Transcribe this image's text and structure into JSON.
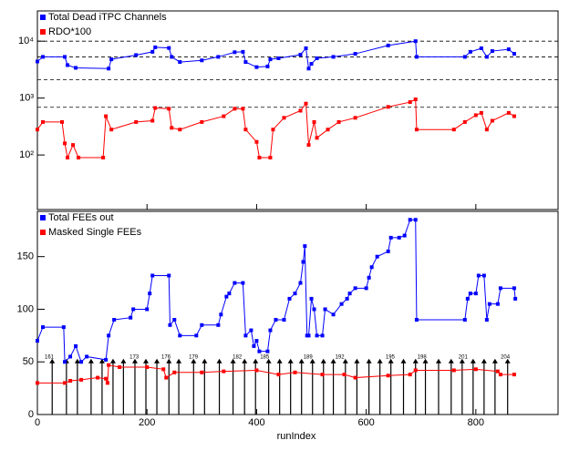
{
  "chart_data": [
    {
      "type": "line",
      "log_y": true,
      "xlim": [
        0,
        950
      ],
      "ylim": [
        11,
        34000
      ],
      "yticks": [
        {
          "value": 100,
          "label": "10²"
        },
        {
          "value": 1000,
          "label": "10³"
        },
        {
          "value": 10000,
          "label": "10⁴"
        }
      ],
      "ref_lines": [
        10000,
        5300,
        2100,
        690
      ],
      "series": [
        {
          "name": "Total Dead iTPC Channels",
          "color": "#0000ff",
          "x": [
            0,
            10,
            50,
            55,
            70,
            130,
            135,
            180,
            210,
            215,
            240,
            245,
            260,
            300,
            330,
            360,
            375,
            380,
            400,
            420,
            425,
            440,
            480,
            490,
            495,
            500,
            510,
            540,
            580,
            640,
            690,
            692,
            780,
            790,
            810,
            820,
            830,
            860,
            870
          ],
          "values": [
            4400,
            5300,
            5300,
            3800,
            3400,
            3300,
            4800,
            5700,
            6500,
            7800,
            7600,
            5300,
            4300,
            4600,
            5300,
            6400,
            6500,
            4300,
            3500,
            3600,
            4800,
            5000,
            5800,
            7500,
            3300,
            4000,
            5000,
            5300,
            6000,
            8400,
            10000,
            5300,
            5300,
            6500,
            7500,
            5300,
            6700,
            7200,
            6000
          ]
        },
        {
          "name": "RDO*100",
          "color": "#ff0000",
          "x": [
            0,
            10,
            45,
            50,
            55,
            65,
            75,
            120,
            125,
            135,
            180,
            210,
            215,
            240,
            245,
            260,
            300,
            340,
            360,
            375,
            380,
            400,
            405,
            425,
            430,
            450,
            480,
            490,
            495,
            505,
            510,
            530,
            550,
            580,
            640,
            680,
            690,
            692,
            760,
            780,
            800,
            810,
            820,
            830,
            860,
            870
          ],
          "values": [
            280,
            380,
            380,
            160,
            90,
            150,
            90,
            90,
            480,
            280,
            380,
            400,
            670,
            650,
            300,
            280,
            380,
            480,
            650,
            650,
            280,
            170,
            90,
            90,
            280,
            450,
            600,
            800,
            150,
            380,
            200,
            280,
            380,
            450,
            700,
            850,
            950,
            280,
            280,
            380,
            500,
            550,
            280,
            400,
            550,
            480
          ]
        }
      ]
    },
    {
      "type": "line",
      "xlabel": "runIndex",
      "xlim": [
        0,
        950
      ],
      "ylim": [
        0,
        193
      ],
      "xticks": [
        0,
        200,
        400,
        600,
        800
      ],
      "yticks": [
        0,
        50,
        100,
        150
      ],
      "marker_y": 53,
      "markers": [
        27,
        53,
        73,
        98,
        118,
        138,
        157,
        178,
        198,
        218,
        240,
        258,
        285,
        305,
        332,
        357,
        378,
        398,
        422,
        442,
        462,
        482,
        502,
        522,
        540,
        562,
        583,
        605,
        625,
        645,
        668,
        690,
        708,
        732,
        755,
        775,
        795,
        815,
        835,
        858
      ],
      "marker_labels": [
        {
          "x": 10,
          "label": "161"
        },
        {
          "x": 165,
          "label": "173"
        },
        {
          "x": 223,
          "label": "176"
        },
        {
          "x": 273,
          "label": "179"
        },
        {
          "x": 353,
          "label": "182"
        },
        {
          "x": 403,
          "label": "185"
        },
        {
          "x": 482,
          "label": "189"
        },
        {
          "x": 540,
          "label": "192"
        },
        {
          "x": 632,
          "label": "195"
        },
        {
          "x": 690,
          "label": "198"
        },
        {
          "x": 765,
          "label": "201"
        },
        {
          "x": 842,
          "label": "204"
        }
      ],
      "series": [
        {
          "name": "Total FEEs out",
          "color": "#0000ff",
          "x": [
            0,
            10,
            48,
            50,
            60,
            70,
            80,
            90,
            125,
            130,
            140,
            170,
            175,
            200,
            205,
            210,
            240,
            242,
            250,
            260,
            290,
            300,
            330,
            335,
            345,
            350,
            360,
            375,
            380,
            390,
            395,
            400,
            405,
            420,
            425,
            435,
            450,
            460,
            470,
            480,
            485,
            488,
            492,
            495,
            500,
            505,
            510,
            520,
            525,
            540,
            555,
            565,
            570,
            580,
            600,
            605,
            610,
            620,
            640,
            645,
            660,
            670,
            680,
            690,
            692,
            780,
            785,
            790,
            800,
            805,
            815,
            820,
            825,
            840,
            845,
            870,
            872
          ],
          "values": [
            70,
            83,
            83,
            50,
            55,
            65,
            50,
            55,
            52,
            75,
            90,
            92,
            100,
            100,
            115,
            132,
            132,
            85,
            90,
            75,
            75,
            85,
            85,
            95,
            112,
            115,
            125,
            125,
            75,
            80,
            65,
            70,
            60,
            60,
            80,
            90,
            90,
            110,
            115,
            125,
            145,
            160,
            75,
            75,
            110,
            100,
            75,
            75,
            100,
            95,
            105,
            110,
            115,
            120,
            120,
            130,
            140,
            150,
            155,
            168,
            168,
            170,
            185,
            185,
            90,
            90,
            110,
            115,
            115,
            132,
            132,
            90,
            105,
            105,
            120,
            120,
            110
          ]
        },
        {
          "name": "Masked Single FEEs",
          "color": "#ff0000",
          "x": [
            0,
            50,
            60,
            80,
            110,
            125,
            128,
            130,
            150,
            200,
            230,
            235,
            250,
            300,
            340,
            400,
            440,
            470,
            520,
            560,
            580,
            640,
            680,
            690,
            760,
            800,
            840,
            845,
            870
          ],
          "values": [
            30,
            30,
            32,
            33,
            35,
            34,
            30,
            47,
            45,
            45,
            43,
            35,
            40,
            40,
            41,
            42,
            38,
            40,
            38,
            38,
            35,
            37,
            38,
            42,
            42,
            43,
            41,
            38,
            38
          ]
        }
      ]
    }
  ]
}
